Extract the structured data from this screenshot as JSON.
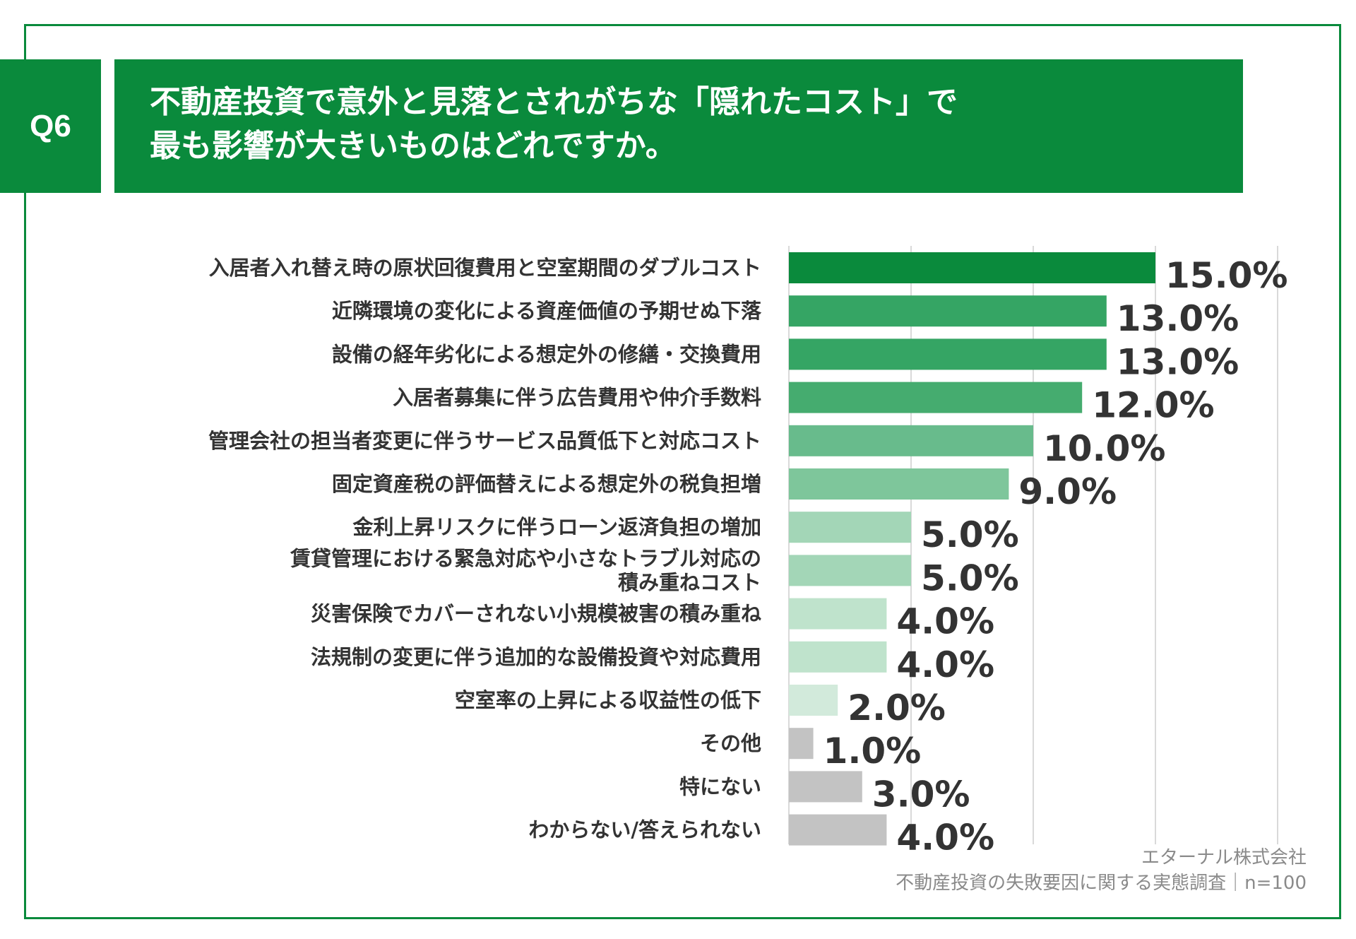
{
  "question": {
    "label": "Q6",
    "title_line1": "不動産投資で意外と見落とされがちな「隠れたコスト」で",
    "title_line2": "最も影響が大きいものはどれですか。"
  },
  "source": {
    "line1": "エターナル株式会社",
    "line2": "不動産投資の失敗要因に関する実態調査｜n=100"
  },
  "colors": {
    "brand": "#0a8a3c",
    "gridline": "#d9d9d9",
    "value_text": "#333333",
    "category_text": "#333333"
  },
  "chart_data": {
    "type": "bar",
    "orientation": "horizontal",
    "title": "",
    "xlabel": "",
    "ylabel": "",
    "xlim": [
      0,
      20
    ],
    "grid": true,
    "legend": "none",
    "categories": [
      [
        "入居者入れ替え時の原状回復費用と空室期間のダブルコスト"
      ],
      [
        "近隣環境の変化による資産価値の予期せぬ下落"
      ],
      [
        "設備の経年劣化による想定外の修繕・交換費用"
      ],
      [
        "入居者募集に伴う広告費用や仲介手数料"
      ],
      [
        "管理会社の担当者変更に伴うサービス品質低下と対応コスト"
      ],
      [
        "固定資産税の評価替えによる想定外の税負担増"
      ],
      [
        "金利上昇リスクに伴うローン返済負担の増加"
      ],
      [
        "賃貸管理における緊急対応や小さなトラブル対応の",
        "積み重ねコスト"
      ],
      [
        "災害保険でカバーされない小規模被害の積み重ね"
      ],
      [
        "法規制の変更に伴う追加的な設備投資や対応費用"
      ],
      [
        "空室率の上昇による収益性の低下"
      ],
      [
        "その他"
      ],
      [
        "特にない"
      ],
      [
        "わからない/答えられない"
      ]
    ],
    "values": [
      15.0,
      13.0,
      13.0,
      12.0,
      10.0,
      9.0,
      5.0,
      5.0,
      4.0,
      4.0,
      2.0,
      1.0,
      3.0,
      4.0
    ],
    "value_labels": [
      "15.0%",
      "13.0%",
      "13.0%",
      "12.0%",
      "10.0%",
      "9.0%",
      "5.0%",
      "5.0%",
      "4.0%",
      "4.0%",
      "2.0%",
      "1.0%",
      "3.0%",
      "4.0%"
    ],
    "bar_colors": [
      "#0a8a3c",
      "#35a564",
      "#35a564",
      "#45ac6f",
      "#68bb8c",
      "#7ec69b",
      "#a3d6b7",
      "#a3d6b7",
      "#bfe3cc",
      "#bfe3cc",
      "#d2eadb",
      "#c3c3c3",
      "#c3c3c3",
      "#c3c3c3"
    ]
  }
}
